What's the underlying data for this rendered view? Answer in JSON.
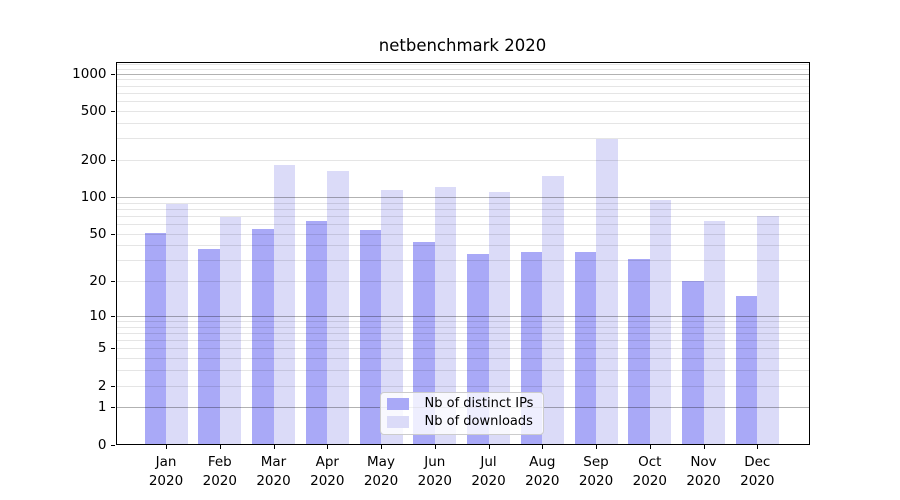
{
  "chart_data": {
    "type": "bar",
    "title": "netbenchmark 2020",
    "categories": [
      "Jan 2020",
      "Feb 2020",
      "Mar 2020",
      "Apr 2020",
      "May 2020",
      "Jun 2020",
      "Jul 2020",
      "Aug 2020",
      "Sep 2020",
      "Oct 2020",
      "Nov 2020",
      "Dec 2020"
    ],
    "series": [
      {
        "name": "Nb of distinct IPs",
        "color": "#a9a9f7",
        "values": [
          51,
          37,
          55,
          64,
          54,
          43,
          34,
          35,
          35,
          31,
          20,
          15
        ]
      },
      {
        "name": "Nb of downloads",
        "color": "#dbdbf8",
        "values": [
          88,
          68,
          182,
          162,
          113,
          120,
          109,
          148,
          294,
          95,
          63,
          70
        ]
      }
    ],
    "yscale": "log1p",
    "yticks": [
      0,
      1,
      2,
      5,
      10,
      20,
      50,
      100,
      200,
      500,
      1000
    ],
    "ylim": [
      0,
      1246
    ],
    "xlabel": "",
    "ylabel": "",
    "grid": "horizontal major+minor",
    "legend_position": "lower center"
  }
}
